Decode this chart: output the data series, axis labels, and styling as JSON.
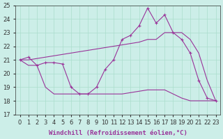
{
  "xlabel": "Windchill (Refroidissement éolien,°C)",
  "background_color": "#cceee8",
  "grid_color": "#aaddcc",
  "line_color": "#993399",
  "xlim": [
    -0.5,
    23.5
  ],
  "ylim": [
    17,
    25
  ],
  "yticks": [
    17,
    18,
    19,
    20,
    21,
    22,
    23,
    24,
    25
  ],
  "xticks": [
    0,
    1,
    2,
    3,
    4,
    5,
    6,
    7,
    8,
    9,
    10,
    11,
    12,
    13,
    14,
    15,
    16,
    17,
    18,
    19,
    20,
    21,
    22,
    23
  ],
  "line1_x": [
    0,
    1,
    2,
    3,
    4,
    5,
    6,
    7,
    8,
    9,
    10,
    11,
    12,
    13,
    14,
    15,
    16,
    17,
    18,
    19,
    20,
    21,
    22,
    23
  ],
  "line1_y": [
    21.0,
    21.2,
    20.6,
    20.8,
    20.8,
    20.7,
    19.0,
    18.5,
    18.5,
    19.0,
    20.3,
    21.0,
    22.5,
    22.8,
    23.5,
    24.8,
    23.7,
    24.3,
    23.0,
    22.5,
    21.5,
    19.5,
    18.2,
    18.0
  ],
  "line2_x": [
    0,
    1,
    2,
    3,
    4,
    5,
    6,
    7,
    8,
    9,
    10,
    11,
    12,
    13,
    14,
    15,
    16,
    17,
    18,
    19,
    20,
    21,
    22,
    23
  ],
  "line2_y": [
    21.0,
    21.0,
    21.1,
    21.2,
    21.3,
    21.4,
    21.5,
    21.6,
    21.7,
    21.8,
    21.9,
    22.0,
    22.1,
    22.2,
    22.3,
    22.5,
    22.5,
    23.0,
    23.0,
    23.0,
    22.5,
    21.5,
    19.5,
    18.0
  ],
  "line3_x": [
    0,
    1,
    2,
    3,
    4,
    5,
    6,
    7,
    8,
    9,
    10,
    11,
    12,
    13,
    14,
    15,
    16,
    17,
    18,
    19,
    20,
    21,
    22,
    23
  ],
  "line3_y": [
    21.0,
    20.6,
    20.6,
    19.0,
    18.5,
    18.5,
    18.5,
    18.5,
    18.5,
    18.5,
    18.5,
    18.5,
    18.5,
    18.6,
    18.7,
    18.8,
    18.8,
    18.8,
    18.5,
    18.2,
    18.0,
    18.0,
    18.0,
    18.0
  ],
  "xlabel_fontsize": 6.5,
  "tick_fontsize": 6
}
